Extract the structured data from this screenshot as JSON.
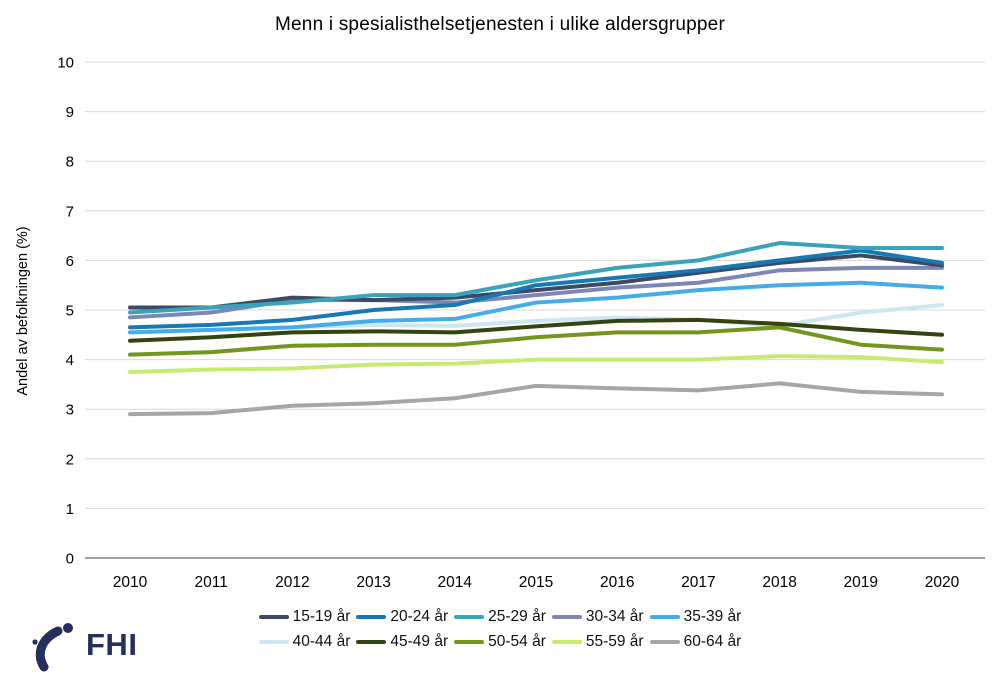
{
  "title": "Menn i spesialisthelsetjenesten i ulike aldersgrupper",
  "y_axis_label": "Andel av befolkningen (%)",
  "footer": {
    "logo_text": "FHI"
  },
  "style_colors": {
    "gridline": "#d9d9d9",
    "axis_line": "#7f7f7f",
    "tick_text": "#000000",
    "logo": "#252f5e"
  },
  "chart_data": {
    "type": "line",
    "title": "Menn i spesialisthelsetjenesten i ulike aldersgrupper",
    "xlabel": "",
    "ylabel": "Andel av befolkningen (%)",
    "ylim": [
      0,
      10
    ],
    "y_ticks": [
      0,
      1,
      2,
      3,
      4,
      5,
      6,
      7,
      8,
      9,
      10
    ],
    "grid": true,
    "legend_position": "bottom",
    "x": [
      2010,
      2011,
      2012,
      2013,
      2014,
      2015,
      2016,
      2017,
      2018,
      2019,
      2020
    ],
    "series": [
      {
        "name": "15-19 år",
        "color": "#3d4a63",
        "values": [
          5.05,
          5.05,
          5.25,
          5.2,
          5.25,
          5.4,
          5.55,
          5.75,
          5.95,
          6.1,
          5.9
        ]
      },
      {
        "name": "20-24 år",
        "color": "#1878b4",
        "values": [
          4.65,
          4.7,
          4.8,
          5.0,
          5.1,
          5.5,
          5.65,
          5.8,
          6.0,
          6.2,
          5.95
        ]
      },
      {
        "name": "25-29 år",
        "color": "#38a3bb",
        "values": [
          4.95,
          5.05,
          5.15,
          5.3,
          5.3,
          5.6,
          5.85,
          6.0,
          6.35,
          6.25,
          6.25
        ]
      },
      {
        "name": "30-34 år",
        "color": "#7e85b7",
        "values": [
          4.85,
          4.95,
          5.2,
          5.2,
          5.15,
          5.3,
          5.45,
          5.55,
          5.8,
          5.85,
          5.85
        ]
      },
      {
        "name": "35-39 år",
        "color": "#44ade9",
        "values": [
          4.55,
          4.6,
          4.65,
          4.78,
          4.82,
          5.15,
          5.25,
          5.4,
          5.5,
          5.55,
          5.45
        ]
      },
      {
        "name": "40-44 år",
        "color": "#cde6f0",
        "values": [
          4.55,
          4.6,
          4.65,
          4.7,
          4.68,
          4.78,
          4.85,
          4.8,
          4.68,
          4.95,
          5.1
        ]
      },
      {
        "name": "45-49 år",
        "color": "#344410",
        "values": [
          4.38,
          4.45,
          4.55,
          4.57,
          4.55,
          4.67,
          4.78,
          4.8,
          4.72,
          4.6,
          4.5
        ]
      },
      {
        "name": "50-54 år",
        "color": "#75961e",
        "values": [
          4.1,
          4.15,
          4.28,
          4.3,
          4.3,
          4.45,
          4.55,
          4.55,
          4.65,
          4.3,
          4.2
        ]
      },
      {
        "name": "55-59 år",
        "color": "#c9ea71",
        "values": [
          3.75,
          3.8,
          3.82,
          3.9,
          3.92,
          4.0,
          4.0,
          4.0,
          4.07,
          4.05,
          3.95
        ]
      },
      {
        "name": "60-64 år",
        "color": "#a6a6a6",
        "values": [
          2.9,
          2.92,
          3.07,
          3.12,
          3.22,
          3.47,
          3.42,
          3.38,
          3.52,
          3.35,
          3.3
        ]
      }
    ]
  }
}
